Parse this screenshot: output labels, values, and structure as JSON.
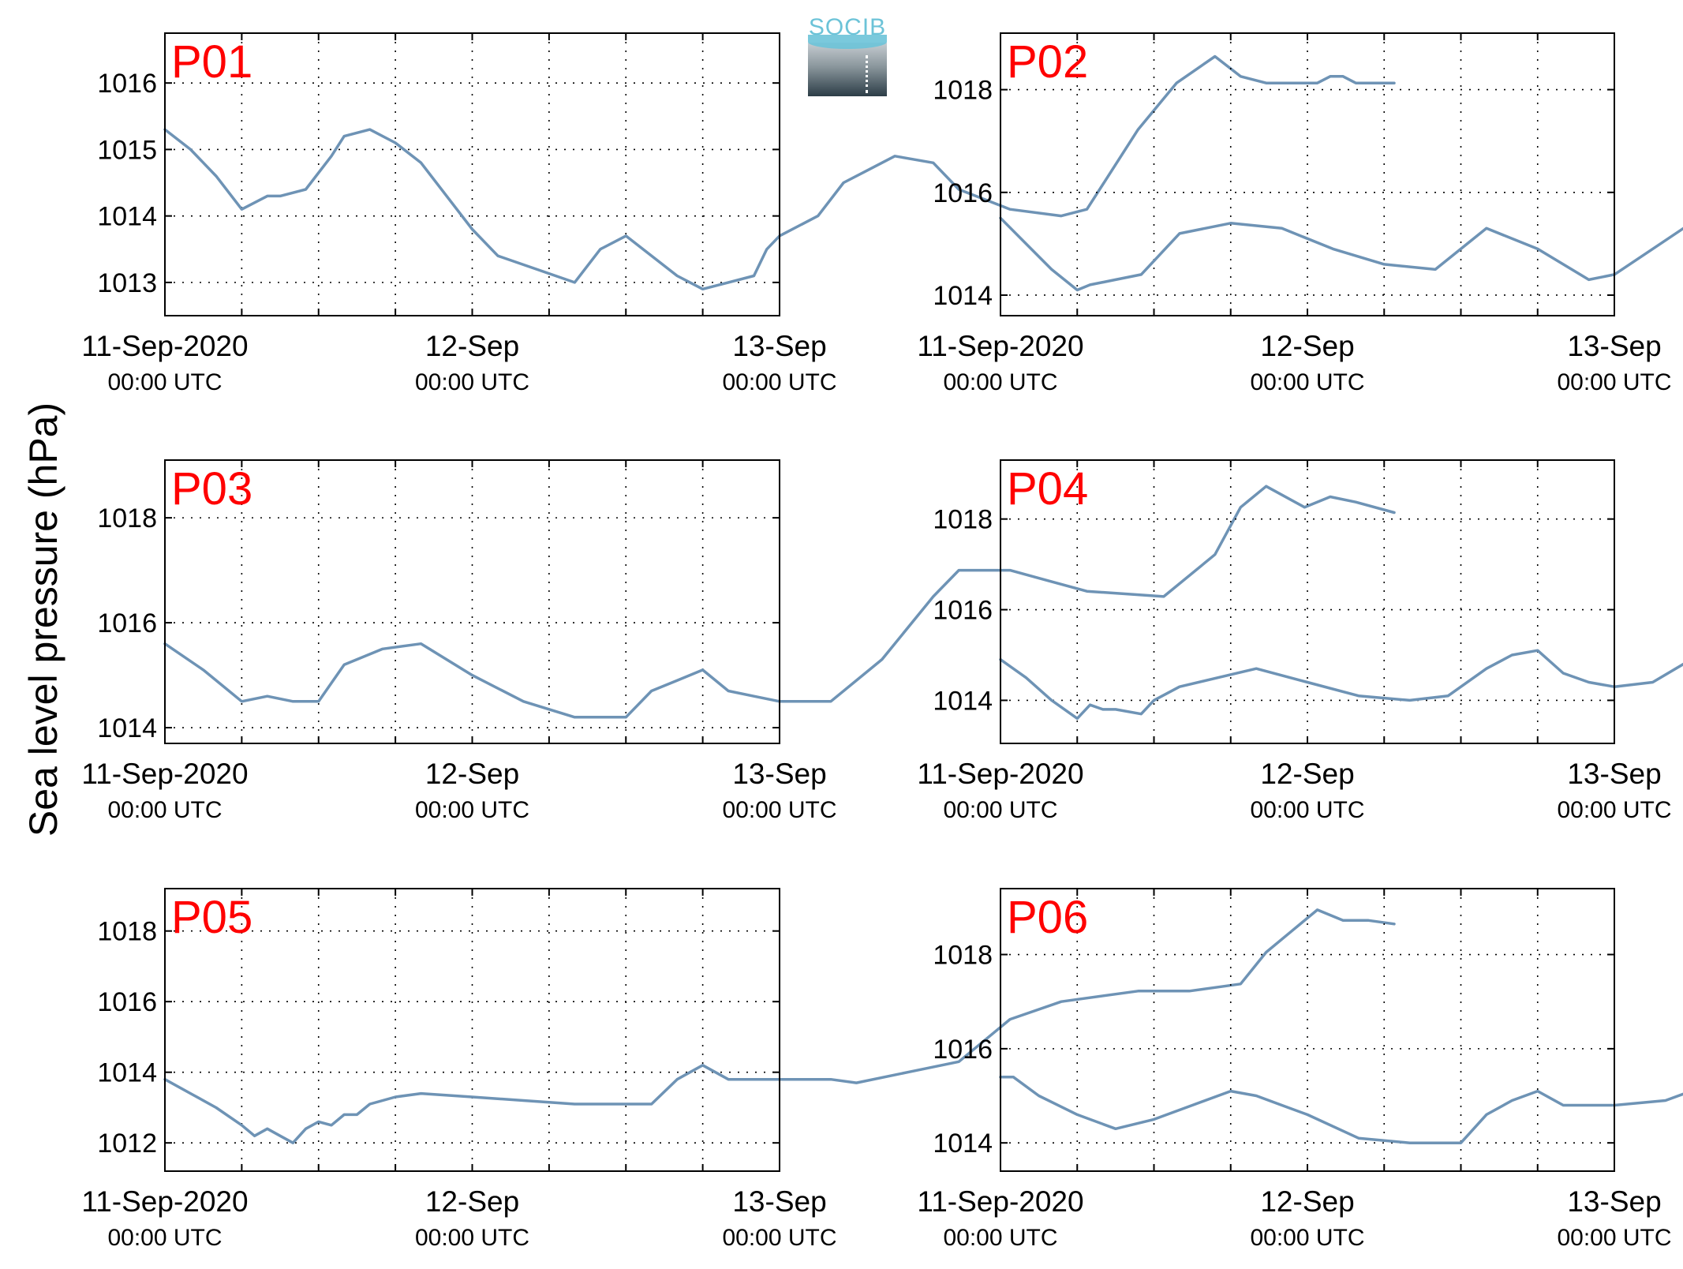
{
  "figure": {
    "ylabel": "Sea level pressure (hPa)",
    "logo_text": "SOCIB",
    "colors": {
      "line": "#6e93b5",
      "panel_label": "#ff0000",
      "axis": "#000000",
      "grid": "#000000"
    }
  },
  "chart_data": [
    {
      "type": "line",
      "panel_label": "P01",
      "xlim": [
        "2020-09-11 00:00",
        "2020-09-13 00:00"
      ],
      "ylim": [
        1012.5,
        1016.75
      ],
      "yticks": [
        1013,
        1014,
        1015,
        1016
      ],
      "xticks": [
        {
          "at": "2020-09-11 00:00",
          "line1": "11-Sep-2020",
          "line2": "00:00 UTC"
        },
        {
          "at": "2020-09-12 00:00",
          "line1": "12-Sep",
          "line2": "00:00 UTC"
        },
        {
          "at": "2020-09-13 00:00",
          "line1": "13-Sep",
          "line2": "00:00 UTC"
        }
      ],
      "grid": true,
      "series": [
        {
          "x_hours": [
            0,
            2,
            4,
            6,
            8,
            9,
            11,
            13,
            14,
            16,
            18,
            20,
            24,
            26,
            29,
            32,
            34,
            36,
            40,
            42,
            44,
            46,
            47,
            48,
            51,
            53,
            55,
            57,
            60,
            62,
            66,
            70,
            72,
            76,
            79,
            82,
            84,
            86,
            88,
            90,
            91,
            92,
            93,
            94,
            96
          ],
          "y": [
            1015.3,
            1015.0,
            1014.6,
            1014.1,
            1014.3,
            1014.3,
            1014.4,
            1014.9,
            1015.2,
            1015.3,
            1015.1,
            1014.8,
            1013.8,
            1013.4,
            1013.2,
            1013.0,
            1013.5,
            1013.7,
            1013.1,
            1012.9,
            1013.0,
            1013.1,
            1013.5,
            1013.7,
            1014.0,
            1014.5,
            1014.7,
            1014.9,
            1014.8,
            1014.4,
            1014.1,
            1014.0,
            1014.1,
            1015.3,
            1016.0,
            1016.4,
            1016.1,
            1016.0,
            1016.0,
            1016.0,
            1016.1,
            1016.1,
            1016.0,
            1016.0,
            1016.0
          ]
        }
      ]
    },
    {
      "type": "line",
      "panel_label": "P02",
      "xlim": [
        "2020-09-11 00:00",
        "2020-09-13 00:00"
      ],
      "ylim": [
        1013.6,
        1019.1
      ],
      "yticks": [
        1014,
        1016,
        1018
      ],
      "xticks": [
        {
          "at": "2020-09-11 00:00",
          "line1": "11-Sep-2020",
          "line2": "00:00 UTC"
        },
        {
          "at": "2020-09-12 00:00",
          "line1": "12-Sep",
          "line2": "00:00 UTC"
        },
        {
          "at": "2020-09-13 00:00",
          "line1": "13-Sep",
          "line2": "00:00 UTC"
        }
      ],
      "grid": true,
      "series": [
        {
          "x_hours": [
            0,
            2,
            4,
            6,
            7,
            9,
            11,
            14,
            18,
            22,
            26,
            30,
            34,
            38,
            42,
            44,
            46,
            48,
            51,
            54,
            57,
            60,
            63,
            66,
            70,
            72,
            75,
            78,
            81,
            83,
            85,
            88,
            90,
            92,
            94,
            96
          ],
          "y": [
            1015.5,
            1015.0,
            1014.5,
            1014.1,
            1014.2,
            1014.3,
            1014.4,
            1015.2,
            1015.4,
            1015.3,
            1014.9,
            1014.6,
            1014.5,
            1015.3,
            1014.9,
            1014.6,
            1014.3,
            1014.4,
            1014.9,
            1015.4,
            1016.3,
            1016.9,
            1017.0,
            1016.7,
            1016.4,
            1016.5,
            1016.8,
            1017.6,
            1018.3,
            1018.6,
            1018.2,
            1018.3,
            1018.3,
            1018.1,
            1018.0,
            1017.9
          ]
        }
      ]
    },
    {
      "type": "line",
      "panel_label": "P03",
      "xlim": [
        "2020-09-11 00:00",
        "2020-09-13 00:00"
      ],
      "ylim": [
        1013.7,
        1019.1
      ],
      "yticks": [
        1014,
        1016,
        1018
      ],
      "xticks": [
        {
          "at": "2020-09-11 00:00",
          "line1": "11-Sep-2020",
          "line2": "00:00 UTC"
        },
        {
          "at": "2020-09-12 00:00",
          "line1": "12-Sep",
          "line2": "00:00 UTC"
        },
        {
          "at": "2020-09-13 00:00",
          "line1": "13-Sep",
          "line2": "00:00 UTC"
        }
      ],
      "grid": true,
      "series": [
        {
          "x_hours": [
            0,
            3,
            6,
            8,
            10,
            12,
            14,
            17,
            20,
            24,
            28,
            32,
            36,
            38,
            40,
            42,
            44,
            46,
            48,
            52,
            56,
            60,
            62,
            66,
            69,
            72,
            78,
            82,
            84,
            86,
            89,
            91,
            93,
            96
          ],
          "y": [
            1015.6,
            1015.1,
            1014.5,
            1014.6,
            1014.5,
            1014.5,
            1015.2,
            1015.5,
            1015.6,
            1015.0,
            1014.5,
            1014.2,
            1014.2,
            1014.7,
            1014.9,
            1015.1,
            1014.7,
            1014.6,
            1014.5,
            1014.5,
            1015.3,
            1016.5,
            1017.0,
            1017.0,
            1016.8,
            1016.6,
            1016.5,
            1017.3,
            1018.2,
            1018.6,
            1018.2,
            1018.4,
            1018.3,
            1018.1
          ]
        }
      ]
    },
    {
      "type": "line",
      "panel_label": "P04",
      "xlim": [
        "2020-09-11 00:00",
        "2020-09-13 00:00"
      ],
      "ylim": [
        1013.05,
        1019.3
      ],
      "yticks": [
        1014,
        1016,
        1018
      ],
      "xticks": [
        {
          "at": "2020-09-11 00:00",
          "line1": "11-Sep-2020",
          "line2": "00:00 UTC"
        },
        {
          "at": "2020-09-12 00:00",
          "line1": "12-Sep",
          "line2": "00:00 UTC"
        },
        {
          "at": "2020-09-13 00:00",
          "line1": "13-Sep",
          "line2": "00:00 UTC"
        }
      ],
      "grid": true,
      "series": [
        {
          "x_hours": [
            0,
            2,
            4,
            6,
            7,
            8,
            9,
            11,
            12,
            14,
            17,
            20,
            24,
            28,
            32,
            35,
            38,
            40,
            42,
            44,
            46,
            48,
            51,
            54,
            57,
            60,
            64,
            68,
            70,
            72,
            75,
            78,
            81,
            83,
            85,
            88,
            90,
            92,
            94,
            96
          ],
          "y": [
            1014.9,
            1014.5,
            1014.0,
            1013.6,
            1013.9,
            1013.8,
            1013.8,
            1013.7,
            1014.0,
            1014.3,
            1014.5,
            1014.7,
            1014.4,
            1014.1,
            1014.0,
            1014.1,
            1014.7,
            1015.0,
            1015.1,
            1014.6,
            1014.4,
            1014.3,
            1014.4,
            1014.9,
            1015.9,
            1016.7,
            1016.9,
            1016.7,
            1016.5,
            1016.6,
            1016.8,
            1017.8,
            1018.5,
            1018.8,
            1018.4,
            1018.6,
            1018.5,
            1018.5,
            1018.4,
            1018.3
          ]
        }
      ]
    },
    {
      "type": "line",
      "panel_label": "P05",
      "xlim": [
        "2020-09-11 00:00",
        "2020-09-13 00:00"
      ],
      "ylim": [
        1011.2,
        1019.2
      ],
      "yticks": [
        1012,
        1014,
        1016,
        1018
      ],
      "xticks": [
        {
          "at": "2020-09-11 00:00",
          "line1": "11-Sep-2020",
          "line2": "00:00 UTC"
        },
        {
          "at": "2020-09-12 00:00",
          "line1": "12-Sep",
          "line2": "00:00 UTC"
        },
        {
          "at": "2020-09-13 00:00",
          "line1": "13-Sep",
          "line2": "00:00 UTC"
        }
      ],
      "grid": true,
      "series": [
        {
          "x_hours": [
            0,
            2,
            4,
            6,
            7,
            8,
            9,
            10,
            11,
            12,
            13,
            14,
            15,
            16,
            18,
            20,
            24,
            28,
            32,
            36,
            38,
            40,
            42,
            44,
            46,
            48,
            52,
            54,
            58,
            62,
            66,
            70,
            76,
            80,
            82,
            84,
            86,
            88,
            90,
            92,
            94,
            96
          ],
          "y": [
            1013.8,
            1013.4,
            1013.0,
            1012.5,
            1012.2,
            1012.4,
            1012.2,
            1012.0,
            1012.4,
            1012.6,
            1012.5,
            1012.8,
            1012.8,
            1013.1,
            1013.3,
            1013.4,
            1013.3,
            1013.2,
            1013.1,
            1013.1,
            1013.1,
            1013.8,
            1014.2,
            1013.8,
            1013.8,
            1013.8,
            1013.8,
            1013.7,
            1014.0,
            1014.3,
            1015.5,
            1016.0,
            1016.3,
            1016.3,
            1016.4,
            1016.5,
            1017.4,
            1018.0,
            1018.6,
            1018.3,
            1018.3,
            1018.2
          ]
        }
      ]
    },
    {
      "type": "line",
      "panel_label": "P06",
      "xlim": [
        "2020-09-11 00:00",
        "2020-09-13 00:00"
      ],
      "ylim": [
        1013.4,
        1019.4
      ],
      "yticks": [
        1014,
        1016,
        1018
      ],
      "xticks": [
        {
          "at": "2020-09-11 00:00",
          "line1": "11-Sep-2020",
          "line2": "00:00 UTC"
        },
        {
          "at": "2020-09-12 00:00",
          "line1": "12-Sep",
          "line2": "00:00 UTC"
        },
        {
          "at": "2020-09-13 00:00",
          "line1": "13-Sep",
          "line2": "00:00 UTC"
        }
      ],
      "grid": true,
      "series": [
        {
          "x_hours": [
            0,
            1,
            3,
            6,
            9,
            12,
            15,
            18,
            20,
            22,
            24,
            28,
            32,
            36,
            38,
            40,
            42,
            44,
            46,
            48,
            52,
            56,
            60,
            62,
            66,
            70,
            72,
            75,
            78,
            81,
            83,
            85,
            88,
            90,
            92,
            94,
            96
          ],
          "y": [
            1015.4,
            1015.4,
            1015.0,
            1014.6,
            1014.3,
            1014.5,
            1014.8,
            1015.1,
            1015.0,
            1014.8,
            1014.6,
            1014.1,
            1014.0,
            1014.0,
            1014.6,
            1014.9,
            1015.1,
            1014.8,
            1014.8,
            1014.8,
            1014.9,
            1015.3,
            1016.5,
            1017.0,
            1017.2,
            1016.9,
            1016.7,
            1016.8,
            1017.8,
            1018.5,
            1019.0,
            1018.6,
            1018.8,
            1018.7,
            1018.6,
            1018.5,
            1018.5
          ]
        }
      ]
    }
  ]
}
